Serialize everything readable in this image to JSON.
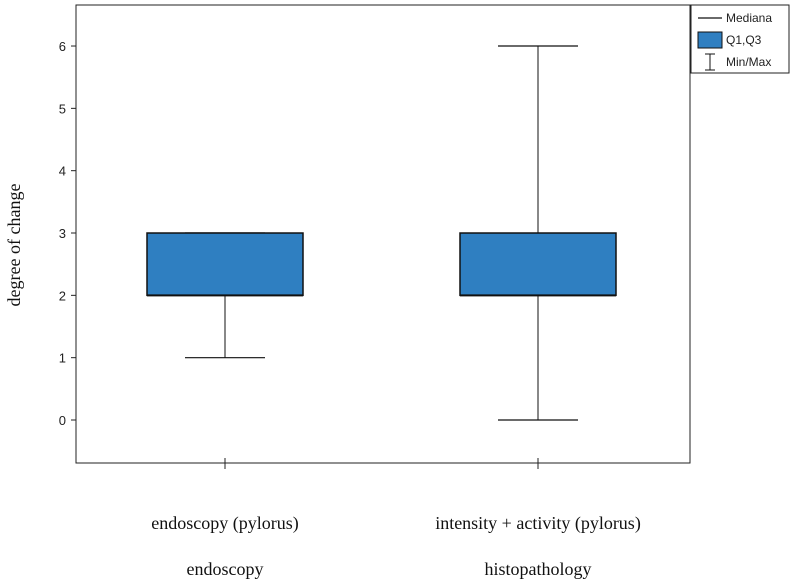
{
  "chart_data": {
    "type": "box",
    "title": "",
    "ylabel": "degree of change",
    "ylim": [
      -0.7,
      6.7
    ],
    "yticks": [
      0,
      1,
      2,
      3,
      4,
      5,
      6
    ],
    "colors": {
      "box": "#2f7fc1",
      "line": "#111111"
    },
    "legend": {
      "placement": "top-right",
      "entries": [
        {
          "kind": "median",
          "label": "Mediana"
        },
        {
          "kind": "box",
          "label": "Q1,Q3"
        },
        {
          "kind": "whisker",
          "label": "Min/Max"
        }
      ]
    },
    "series": [
      {
        "category": "endoscopy (pylorus)",
        "group": "endoscopy",
        "min": 1,
        "q1": 2,
        "median": 2,
        "q3": 3,
        "max": 3
      },
      {
        "category": "intensity + activity (pylorus)",
        "group": "histopathology",
        "min": 0,
        "q1": 2,
        "median": 2,
        "q3": 3,
        "max": 6
      }
    ]
  }
}
